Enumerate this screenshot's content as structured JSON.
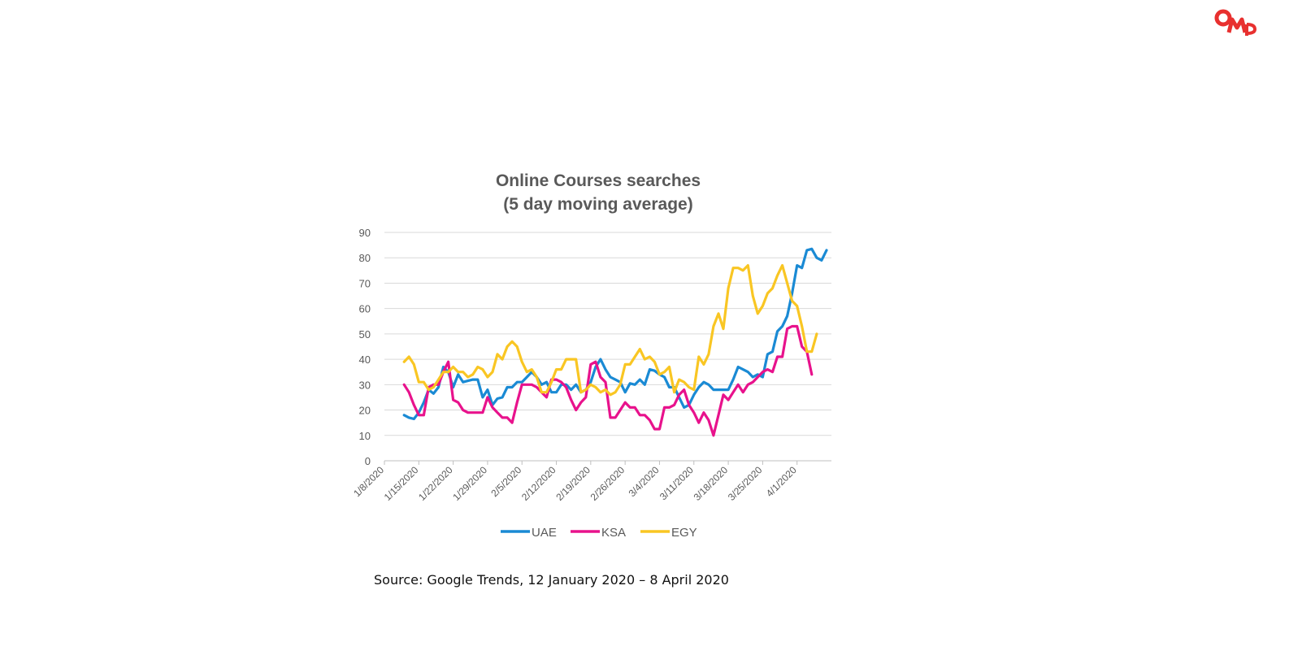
{
  "brand": {
    "logo_text": "OMD",
    "color": "#e8302f"
  },
  "source_note": "Source: Google Trends, 12 January 2020 – 8 April 2020",
  "chart_data": {
    "type": "line",
    "title": "Online Courses searches",
    "subtitle": "(5 day moving average)",
    "xlabel": "",
    "ylabel": "",
    "ylim": [
      0,
      90
    ],
    "yticks": [
      0,
      10,
      20,
      30,
      40,
      50,
      60,
      70,
      80,
      90
    ],
    "grid": true,
    "legend": "bottom",
    "x_tick_labels": [
      "1/8/2020",
      "1/15/2020",
      "1/22/2020",
      "1/29/2020",
      "2/5/2020",
      "2/12/2020",
      "2/19/2020",
      "2/26/2020",
      "3/4/2020",
      "3/11/2020",
      "3/18/2020",
      "3/25/2020",
      "4/1/2020"
    ],
    "x_start": "2020-01-12",
    "series": [
      {
        "name": "UAE",
        "color": "#1a8ad4",
        "values": [
          18,
          17,
          16.5,
          19,
          23,
          28,
          26.5,
          29,
          37,
          35,
          29,
          34,
          31,
          31.5,
          32,
          32,
          25,
          28,
          22,
          24.5,
          25,
          29,
          29,
          31,
          31,
          33,
          35,
          33,
          30,
          31,
          27,
          27,
          30,
          30,
          28,
          30,
          27,
          28,
          31,
          37,
          40,
          36,
          33,
          32,
          31,
          27,
          30.5,
          30,
          32,
          30,
          36,
          35.5,
          34,
          33,
          29,
          29,
          25,
          21,
          22,
          26,
          29,
          31,
          30,
          28,
          28,
          28,
          28,
          32,
          37,
          36,
          35,
          33,
          34,
          33,
          42,
          43,
          51,
          53,
          57,
          66,
          77,
          76,
          83,
          83.5,
          80,
          79,
          83
        ]
      },
      {
        "name": "KSA",
        "color": "#e8128c",
        "values": [
          30,
          27,
          22,
          18,
          18,
          29,
          30,
          30,
          35,
          39,
          24,
          23,
          20,
          19,
          19,
          19,
          19,
          25,
          21,
          19,
          17,
          17,
          15,
          23,
          30,
          30,
          30,
          29,
          27,
          25,
          32,
          32,
          31,
          29,
          24,
          20,
          23,
          25,
          38,
          39,
          33,
          31,
          17,
          17,
          20,
          23,
          21,
          21,
          18,
          18,
          16,
          12.5,
          12.5,
          21,
          21,
          22,
          26,
          28,
          22,
          19,
          15,
          19,
          16,
          10,
          18,
          26,
          24,
          27,
          30,
          27,
          30,
          31,
          33,
          35,
          36,
          35,
          41,
          41,
          52,
          53,
          53,
          45,
          43,
          34
        ]
      },
      {
        "name": "EGY",
        "color": "#f9c623",
        "values": [
          39,
          41,
          38,
          31,
          31,
          28,
          29,
          32,
          35,
          35,
          37,
          35,
          35,
          33,
          34,
          37,
          36,
          33,
          35,
          42,
          40,
          45,
          47,
          45,
          39,
          35,
          36,
          33,
          27,
          27,
          31,
          36,
          36,
          40,
          40,
          40,
          27,
          28,
          30,
          29,
          27,
          28,
          26,
          27,
          30,
          38,
          38,
          41,
          44,
          40,
          41,
          39,
          34,
          35,
          37,
          27,
          32,
          31,
          29,
          28,
          41,
          38,
          42,
          53,
          58,
          52,
          68,
          76,
          76,
          75,
          77,
          65,
          58,
          61,
          66,
          68,
          73,
          77,
          70,
          63,
          61,
          53,
          43,
          43,
          50
        ]
      }
    ]
  }
}
